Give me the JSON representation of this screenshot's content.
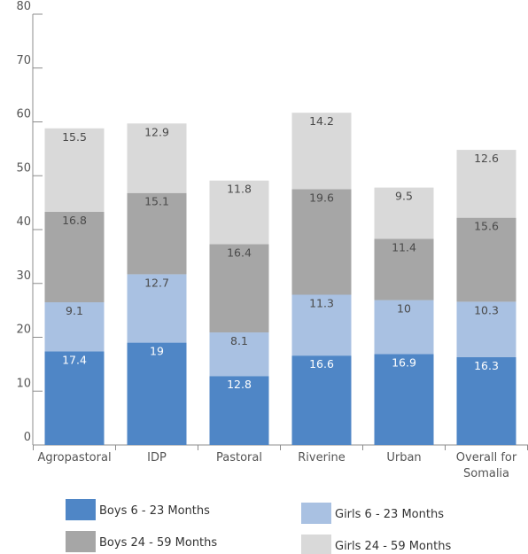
{
  "chart_data": {
    "type": "bar",
    "stacked": true,
    "categories": [
      "Agropastoral",
      "IDP",
      "Pastoral",
      "Riverine",
      "Urban",
      "Overall for Somalia"
    ],
    "series": [
      {
        "name": "Boys 6 - 23 Months",
        "color": "#4f86c6",
        "label_color": "#ffffff",
        "values": [
          17.4,
          19,
          12.8,
          16.6,
          16.9,
          16.3
        ]
      },
      {
        "name": "Girls 6 - 23 Months",
        "color": "#a9c1e2",
        "label_color": "#4a4a4a",
        "values": [
          9.1,
          12.7,
          8.1,
          11.3,
          10,
          10.3
        ]
      },
      {
        "name": "Boys 24 - 59 Months",
        "color": "#a6a6a6",
        "label_color": "#4a4a4a",
        "values": [
          16.8,
          15.1,
          16.4,
          19.6,
          11.4,
          15.6
        ]
      },
      {
        "name": "Girls 24 - 59 Months",
        "color": "#d9d9d9",
        "label_color": "#4a4a4a",
        "values": [
          15.5,
          12.9,
          11.8,
          14.2,
          9.5,
          12.6
        ]
      }
    ],
    "y_ticks": [
      0,
      10,
      20,
      30,
      40,
      50,
      60,
      70,
      80
    ],
    "ylim": [
      0,
      80
    ],
    "title": "",
    "xlabel": "",
    "ylabel": "",
    "grid": false,
    "legend_position": "bottom",
    "axis_color": "#8c8c8c"
  }
}
